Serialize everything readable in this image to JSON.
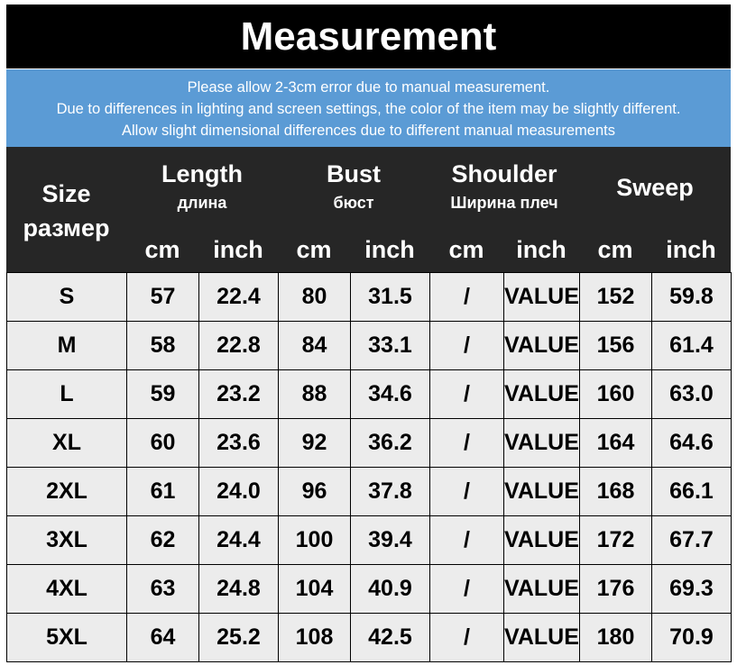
{
  "header": {
    "title": "Measurement"
  },
  "notice": [
    "Please allow 2-3cm error due to manual measurement.",
    "Due to differences in lighting and screen settings, the color of the item may be slightly different.",
    "Allow slight dimensional differences due to different manual measurements"
  ],
  "table": {
    "columns": [
      {
        "label": "Size",
        "sublabel": "размер"
      },
      {
        "label": "Length",
        "sublabel": "длина"
      },
      {
        "label": "Bust",
        "sublabel": "бюст"
      },
      {
        "label": "Shoulder",
        "sublabel": "Ширина плеч"
      },
      {
        "label": "Sweep"
      }
    ],
    "units": [
      "cm",
      "inch",
      "cm",
      "inch",
      "cm",
      "inch",
      "cm",
      "inch"
    ],
    "rows": [
      [
        "S",
        57,
        22.4,
        80,
        31.5,
        "/",
        "VALUE",
        152,
        59.8
      ],
      [
        "M",
        58,
        22.8,
        84,
        33.1,
        "/",
        "VALUE",
        156,
        61.4
      ],
      [
        "L",
        59,
        23.2,
        88,
        34.6,
        "/",
        "VALUE",
        160,
        "63.0"
      ],
      [
        "XL",
        60,
        23.6,
        92,
        36.2,
        "/",
        "VALUE",
        164,
        64.6
      ],
      [
        "2XL",
        61,
        "24.0",
        96,
        37.8,
        "/",
        "VALUE",
        168,
        66.1
      ],
      [
        "3XL",
        62,
        24.4,
        100,
        39.4,
        "/",
        "VALUE",
        172,
        67.7
      ],
      [
        "4XL",
        63,
        24.8,
        104,
        40.9,
        "/",
        "VALUE",
        176,
        69.3
      ],
      [
        "5XL",
        64,
        25.2,
        108,
        42.5,
        "/",
        "VALUE",
        180,
        70.9
      ]
    ]
  }
}
